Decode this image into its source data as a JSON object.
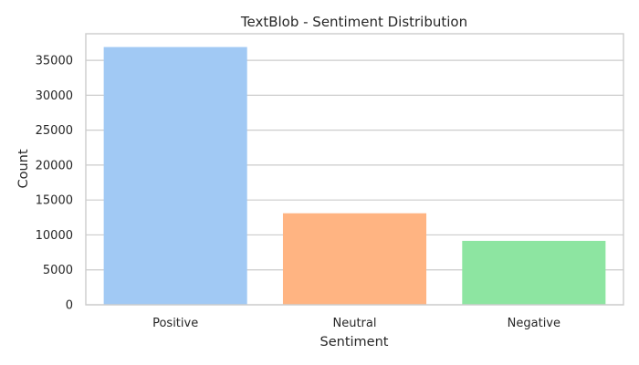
{
  "chart_data": {
    "type": "bar",
    "title": "TextBlob - Sentiment Distribution",
    "xlabel": "Sentiment",
    "ylabel": "Count",
    "categories": [
      "Positive",
      "Neutral",
      "Negative"
    ],
    "values": [
      36900,
      13100,
      9150
    ],
    "colors": [
      "#a1c9f4",
      "#ffb482",
      "#8de5a1"
    ],
    "ylim": [
      0,
      38800
    ],
    "yticks": [
      0,
      5000,
      10000,
      15000,
      20000,
      25000,
      30000,
      35000
    ],
    "grid": "horizontal"
  }
}
